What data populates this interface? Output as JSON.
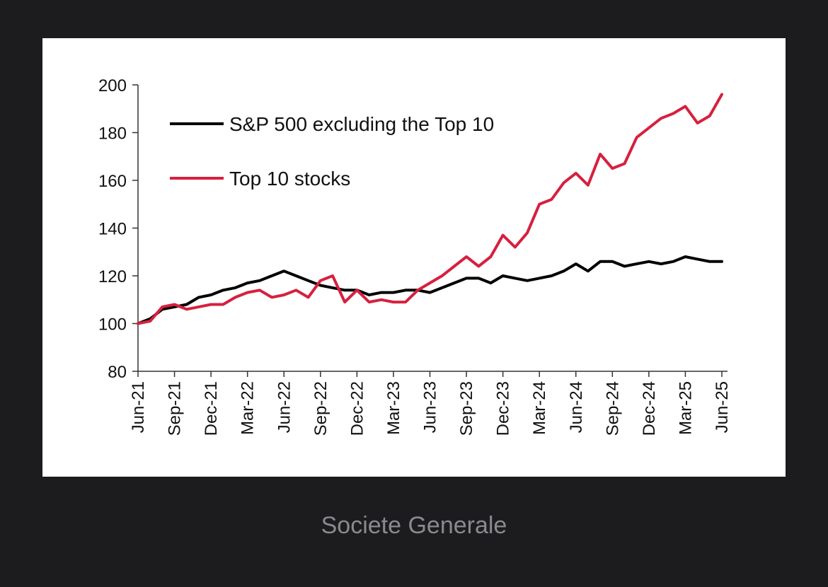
{
  "caption": "Societe Generale",
  "colors": {
    "sp500_ex_top10": "#000000",
    "top10": "#d6203f",
    "background": "#1c1c1e",
    "card": "#ffffff"
  },
  "chart_data": {
    "type": "line",
    "title": "",
    "xlabel": "",
    "ylabel": "",
    "ylim": [
      80,
      200
    ],
    "yticks": [
      80,
      100,
      120,
      140,
      160,
      180,
      200
    ],
    "grid": false,
    "legend_position": "top-left",
    "x": [
      "Jun-21",
      "Jul-21",
      "Aug-21",
      "Sep-21",
      "Oct-21",
      "Nov-21",
      "Dec-21",
      "Jan-22",
      "Feb-22",
      "Mar-22",
      "Apr-22",
      "May-22",
      "Jun-22",
      "Jul-22",
      "Aug-22",
      "Sep-22",
      "Oct-22",
      "Nov-22",
      "Dec-22",
      "Jan-23",
      "Feb-23",
      "Mar-23",
      "Apr-23",
      "May-23",
      "Jun-23",
      "Jul-23",
      "Aug-23",
      "Sep-23",
      "Oct-23",
      "Nov-23",
      "Dec-23",
      "Jan-24",
      "Feb-24",
      "Mar-24",
      "Apr-24",
      "May-24",
      "Jun-24",
      "Jul-24",
      "Aug-24",
      "Sep-24",
      "Oct-24",
      "Nov-24",
      "Dec-24",
      "Jan-25",
      "Feb-25",
      "Mar-25",
      "Apr-25",
      "May-25",
      "Jun-25"
    ],
    "x_tick_labels": [
      "Jun-21",
      "Sep-21",
      "Dec-21",
      "Mar-22",
      "Jun-22",
      "Sep-22",
      "Dec-22",
      "Mar-23",
      "Jun-23",
      "Sep-23",
      "Dec-23",
      "Mar-24",
      "Jun-24",
      "Sep-24",
      "Dec-24",
      "Mar-25",
      "Jun-25"
    ],
    "series": [
      {
        "name": "S&P 500 excluding the Top 10",
        "color": "#000000",
        "values": [
          100,
          102,
          106,
          107,
          108,
          111,
          112,
          114,
          115,
          117,
          118,
          120,
          122,
          120,
          118,
          116,
          115,
          114,
          114,
          112,
          113,
          113,
          114,
          114,
          113,
          115,
          117,
          119,
          119,
          117,
          120,
          119,
          118,
          119,
          120,
          122,
          125,
          122,
          126,
          126,
          124,
          125,
          126,
          125,
          126,
          128,
          127,
          126,
          126
        ]
      },
      {
        "name": "Top 10 stocks",
        "color": "#d6203f",
        "values": [
          100,
          101,
          107,
          108,
          106,
          107,
          108,
          108,
          111,
          113,
          114,
          111,
          112,
          114,
          111,
          118,
          120,
          109,
          114,
          109,
          110,
          109,
          109,
          114,
          117,
          120,
          124,
          128,
          124,
          128,
          137,
          132,
          138,
          150,
          152,
          159,
          163,
          158,
          171,
          165,
          167,
          178,
          182,
          186,
          188,
          191,
          184,
          187,
          196
        ]
      }
    ]
  }
}
